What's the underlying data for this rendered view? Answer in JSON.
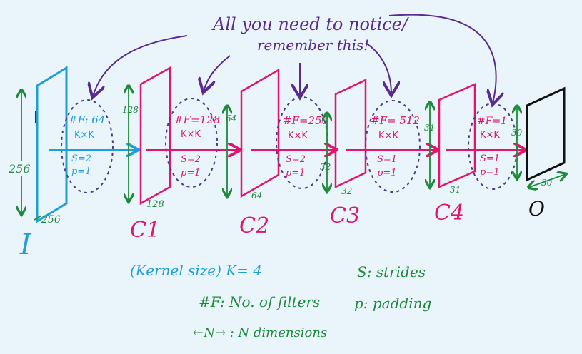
{
  "callout": {
    "line1": "All you need to notice/",
    "line2": "remember this!"
  },
  "input_label": "I",
  "output_label": "O",
  "layers": [
    {
      "id": "C1",
      "label": "C1",
      "height_dim": "128",
      "width_dim": "128"
    },
    {
      "id": "C2",
      "label": "C2",
      "height_dim": "64",
      "width_dim": "64"
    },
    {
      "id": "C3",
      "label": "C3",
      "height_dim": "32",
      "width_dim": "32"
    },
    {
      "id": "C4",
      "label": "C4",
      "height_dim": "31",
      "width_dim": "31"
    }
  ],
  "input_dims": {
    "height": "256",
    "width": "256"
  },
  "output_dims": {
    "height": "30",
    "width": "30"
  },
  "ops": [
    {
      "filters": "#F: 64",
      "kernel": "K×K",
      "stride": "S=2",
      "padding": "p=1"
    },
    {
      "filters": "#F=128",
      "kernel": "K×K",
      "stride": "S=2",
      "padding": "p=1"
    },
    {
      "filters": "#F=256",
      "kernel": "K×K",
      "stride": "S=2",
      "padding": "p=1"
    },
    {
      "filters": "#F= 512",
      "kernel": "K×K",
      "stride": "S=1",
      "padding": "p=1"
    },
    {
      "filters": "#F=1",
      "kernel": "K×K",
      "stride": "S=1",
      "padding": "p=1"
    }
  ],
  "legend": {
    "kernel_size": "(Kernel size) K= 4",
    "filters": "#F: No. of filters",
    "dims": "←N→ : N dimensions",
    "strides": "S: strides",
    "padding": "p: padding"
  },
  "colors": {
    "input": "#1f9fd6",
    "layer": "#e0156b",
    "output": "#111111",
    "dim": "#1d8a3a",
    "callout": "#5a2a8f",
    "dashed": "#4b3a8f",
    "label": "#e0156b"
  }
}
